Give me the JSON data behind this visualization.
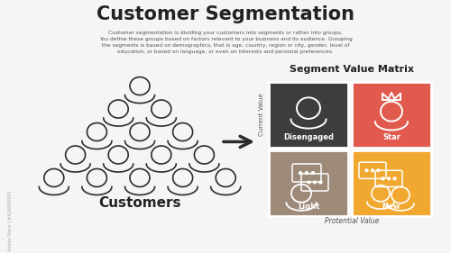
{
  "title": "Customer Segmentation",
  "subtitle": "Customer segmentation is dividing your customers into segments or rather into groups.\nYou define these groups based on factors relevant to your business and its audience. Grouping\nthe segments is based on demographics, that is age, country, region or city, gender, level of\neducation, or based on language, or even on interests and personal preferences.",
  "customers_label": "Customers",
  "matrix_title": "Segment Value Matrix",
  "segments": [
    "Disengaged",
    "Star",
    "Light",
    "New"
  ],
  "segment_colors": [
    "#3d3d3d",
    "#e05a4e",
    "#9e8a78",
    "#f0a830"
  ],
  "current_value_label": "Current Value",
  "potential_value_label": "Protential Value",
  "bg_color": "#f5f5f5",
  "arrow_color": "#2b2b2b",
  "text_color": "#222222",
  "subtitle_color": "#555555",
  "watermark_text": "Adobe Stock | #426840935"
}
